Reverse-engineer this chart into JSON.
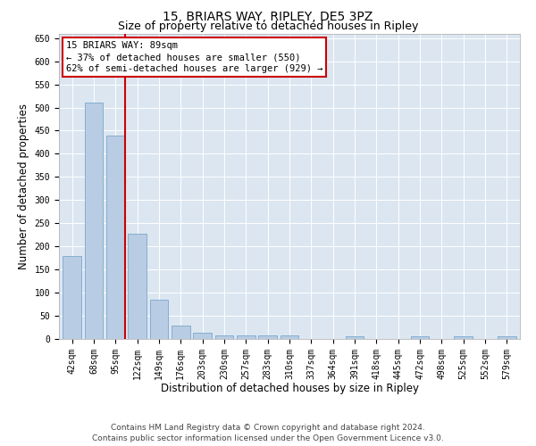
{
  "title": "15, BRIARS WAY, RIPLEY, DE5 3PZ",
  "subtitle": "Size of property relative to detached houses in Ripley",
  "xlabel": "Distribution of detached houses by size in Ripley",
  "ylabel": "Number of detached properties",
  "bar_labels": [
    "42sqm",
    "68sqm",
    "95sqm",
    "122sqm",
    "149sqm",
    "176sqm",
    "203sqm",
    "230sqm",
    "257sqm",
    "283sqm",
    "310sqm",
    "337sqm",
    "364sqm",
    "391sqm",
    "418sqm",
    "445sqm",
    "472sqm",
    "498sqm",
    "525sqm",
    "552sqm",
    "579sqm"
  ],
  "bar_values": [
    180,
    510,
    440,
    228,
    85,
    28,
    13,
    8,
    7,
    7,
    7,
    0,
    0,
    5,
    0,
    0,
    5,
    0,
    5,
    0,
    5
  ],
  "bar_color": "#b8cce4",
  "bar_edge_color": "#7ba7c9",
  "vline_index": 2.425,
  "vline_color": "#cc0000",
  "annotation_text": "15 BRIARS WAY: 89sqm\n← 37% of detached houses are smaller (550)\n62% of semi-detached houses are larger (929) →",
  "ylim": [
    0,
    660
  ],
  "yticks": [
    0,
    50,
    100,
    150,
    200,
    250,
    300,
    350,
    400,
    450,
    500,
    550,
    600,
    650
  ],
  "plot_background_color": "#dce6f1",
  "footer_text": "Contains HM Land Registry data © Crown copyright and database right 2024.\nContains public sector information licensed under the Open Government Licence v3.0.",
  "title_fontsize": 10,
  "subtitle_fontsize": 9,
  "xlabel_fontsize": 8.5,
  "ylabel_fontsize": 8.5,
  "tick_fontsize": 7,
  "annotation_fontsize": 7.5,
  "footer_fontsize": 6.5
}
